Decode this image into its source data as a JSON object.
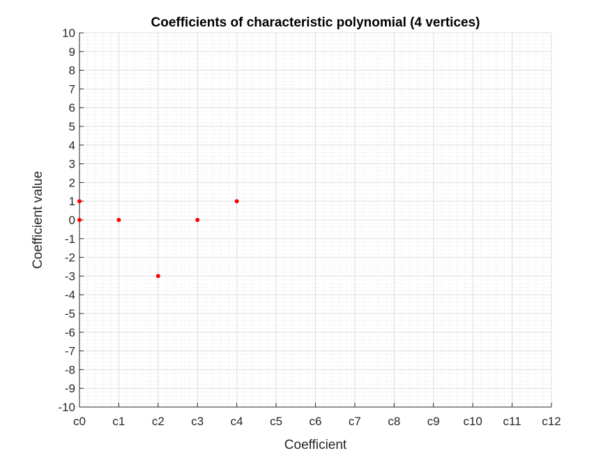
{
  "chart_data": {
    "type": "scatter",
    "title": "Coefficients of characteristic polynomial  (4 vertices)",
    "xlabel": "Coefficient",
    "ylabel": "Coefficient value",
    "categories": [
      "c0",
      "c1",
      "c2",
      "c3",
      "c4",
      "c5",
      "c6",
      "c7",
      "c8",
      "c9",
      "c10",
      "c11",
      "c12"
    ],
    "xlim": [
      0,
      12
    ],
    "ylim": [
      -10,
      10
    ],
    "yticks": [
      -10,
      -9,
      -8,
      -7,
      -6,
      -5,
      -4,
      -3,
      -2,
      -1,
      0,
      1,
      2,
      3,
      4,
      5,
      6,
      7,
      8,
      9,
      10
    ],
    "grid": true,
    "minor_grid": true,
    "marker_color": "#ff0000",
    "points": [
      {
        "x": 0,
        "y": 1
      },
      {
        "x": 0,
        "y": 0
      },
      {
        "x": 1,
        "y": 0
      },
      {
        "x": 2,
        "y": -3
      },
      {
        "x": 3,
        "y": 0
      },
      {
        "x": 4,
        "y": 1
      }
    ]
  }
}
